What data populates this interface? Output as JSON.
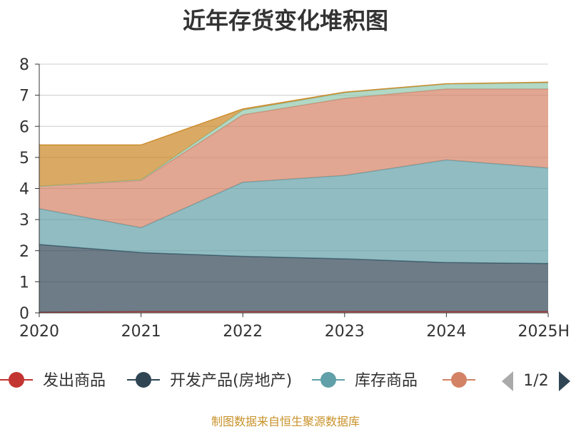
{
  "chart_data": {
    "type": "area",
    "stacked": true,
    "title": "近年存货变化堆积图",
    "ylabel": "",
    "ylim": [
      0,
      8
    ],
    "yticks": [
      0,
      1,
      2,
      3,
      4,
      5,
      6,
      7,
      8
    ],
    "categories": [
      "2020",
      "2021",
      "2022",
      "2023",
      "2024",
      "2025H"
    ],
    "grid": true,
    "series": [
      {
        "name": "发出商品",
        "color": "#c23531",
        "values": [
          0.02,
          0.04,
          0.04,
          0.04,
          0.04,
          0.04
        ]
      },
      {
        "name": "开发产品(房地产)",
        "color": "#2f4554",
        "values": [
          2.18,
          1.9,
          1.78,
          1.7,
          1.58,
          1.55
        ]
      },
      {
        "name": "库存商品",
        "color": "#61a0a8",
        "values": [
          1.15,
          0.8,
          2.38,
          2.68,
          3.3,
          3.07
        ]
      },
      {
        "name": "",
        "color": "#d48265",
        "values": [
          0.72,
          1.52,
          2.17,
          2.48,
          2.28,
          2.54
        ]
      },
      {
        "name": "",
        "color": "#91c7ae",
        "values": [
          0.0,
          0.02,
          0.15,
          0.18,
          0.16,
          0.2
        ]
      },
      {
        "name": "",
        "color": "#ca8622",
        "values": [
          1.33,
          1.12,
          0.04,
          0.02,
          0.01,
          0.02
        ]
      }
    ],
    "legend": {
      "position": "bottom",
      "page": "1/2"
    }
  },
  "legend_visible": [
    {
      "label": "发出商品",
      "color": "#c23531"
    },
    {
      "label": "开发产品(房地产)",
      "color": "#2f4554"
    },
    {
      "label": "库存商品",
      "color": "#61a0a8"
    },
    {
      "label": "",
      "color": "#d48265"
    }
  ],
  "legend_page": "1/2",
  "source_note": "制图数据来自恒生聚源数据库"
}
